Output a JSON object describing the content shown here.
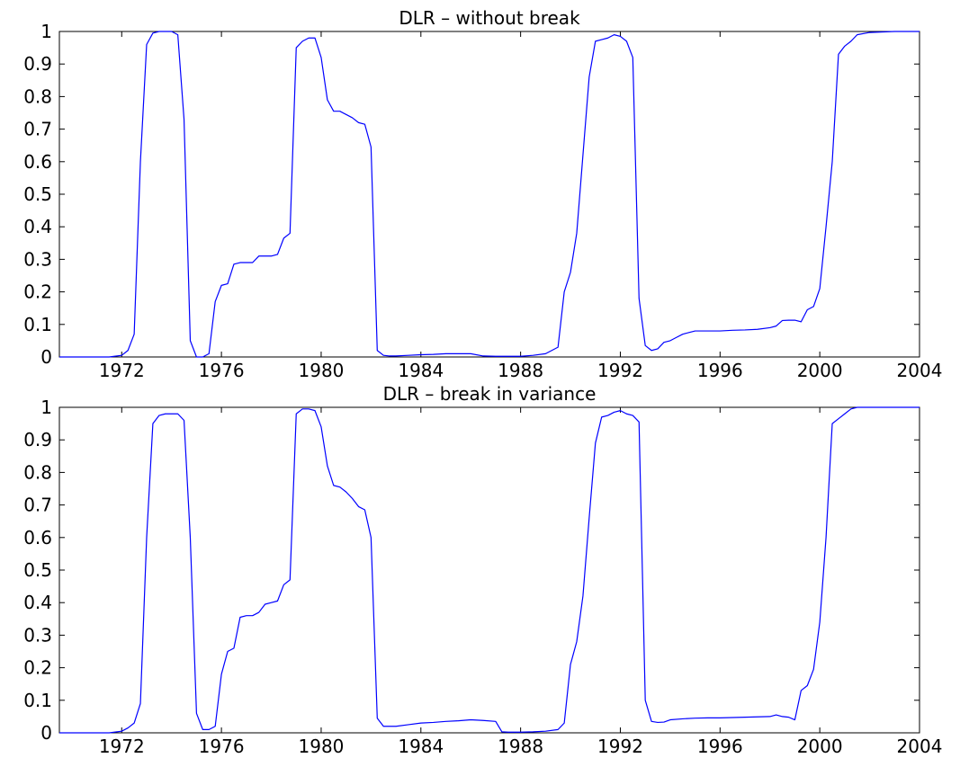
{
  "chart_data": [
    {
      "type": "line",
      "title": "DLR – without break",
      "xlabel": "",
      "ylabel": "",
      "xlim": [
        1969.5,
        2004
      ],
      "ylim": [
        0,
        1
      ],
      "grid": false,
      "xticks": [
        1972,
        1976,
        1980,
        1984,
        1988,
        1992,
        1996,
        2000,
        2004
      ],
      "xtick_labels": [
        "1972",
        "1976",
        "1980",
        "1984",
        "1988",
        "1992",
        "1996",
        "2000",
        "2004"
      ],
      "yticks": [
        0,
        0.1,
        0.2,
        0.3,
        0.4,
        0.5,
        0.6,
        0.7,
        0.8,
        0.9,
        1
      ],
      "ytick_labels": [
        "0",
        "0.1",
        "0.2",
        "0.3",
        "0.4",
        "0.5",
        "0.6",
        "0.7",
        "0.8",
        "0.9",
        "1"
      ],
      "series": [
        {
          "color": "#0000ff",
          "x": [
            1969.5,
            1970,
            1970.5,
            1971,
            1971.5,
            1972,
            1972.25,
            1972.5,
            1972.75,
            1973,
            1973.25,
            1973.5,
            1973.75,
            1974,
            1974.25,
            1974.5,
            1974.75,
            1975,
            1975.25,
            1975.5,
            1975.75,
            1976,
            1976.25,
            1976.5,
            1976.75,
            1977,
            1977.25,
            1977.5,
            1977.75,
            1978,
            1978.25,
            1978.5,
            1978.75,
            1979,
            1979.25,
            1979.5,
            1979.75,
            1980,
            1980.25,
            1980.5,
            1980.75,
            1981,
            1981.25,
            1981.5,
            1981.75,
            1982,
            1982.25,
            1982.5,
            1982.75,
            1983,
            1983.5,
            1984,
            1984.5,
            1985,
            1985.5,
            1986,
            1986.5,
            1987,
            1987.5,
            1988,
            1988.5,
            1989,
            1989.5,
            1989.75,
            1990,
            1990.25,
            1990.5,
            1990.75,
            1991,
            1991.25,
            1991.5,
            1991.75,
            1992,
            1992.25,
            1992.5,
            1992.75,
            1993,
            1993.25,
            1993.5,
            1993.75,
            1994,
            1994.25,
            1994.5,
            1994.75,
            1995,
            1995.5,
            1996,
            1996.5,
            1997,
            1997.5,
            1998,
            1998.25,
            1998.5,
            1998.75,
            1999,
            1999.25,
            1999.5,
            1999.75,
            2000,
            2000.25,
            2000.5,
            2000.75,
            2001,
            2001.25,
            2001.5,
            2002,
            2003,
            2004
          ],
          "y": [
            0,
            0,
            0,
            0,
            0,
            0.005,
            0.02,
            0.07,
            0.6,
            0.96,
            0.995,
            1,
            1,
            1,
            0.99,
            0.73,
            0.05,
            0,
            0,
            0.01,
            0.17,
            0.22,
            0.225,
            0.285,
            0.29,
            0.29,
            0.29,
            0.31,
            0.31,
            0.31,
            0.315,
            0.365,
            0.38,
            0.95,
            0.97,
            0.98,
            0.98,
            0.92,
            0.79,
            0.755,
            0.755,
            0.745,
            0.735,
            0.72,
            0.715,
            0.645,
            0.02,
            0.005,
            0.003,
            0.003,
            0.005,
            0.007,
            0.008,
            0.01,
            0.01,
            0.01,
            0.003,
            0.002,
            0.002,
            0.002,
            0.005,
            0.01,
            0.03,
            0.2,
            0.26,
            0.38,
            0.62,
            0.86,
            0.97,
            0.975,
            0.98,
            0.99,
            0.985,
            0.97,
            0.92,
            0.18,
            0.035,
            0.02,
            0.025,
            0.045,
            0.05,
            0.06,
            0.07,
            0.075,
            0.08,
            0.08,
            0.08,
            0.082,
            0.083,
            0.085,
            0.09,
            0.095,
            0.112,
            0.113,
            0.113,
            0.108,
            0.145,
            0.155,
            0.21,
            0.4,
            0.6,
            0.93,
            0.955,
            0.97,
            0.99,
            0.997,
            1,
            1
          ]
        }
      ]
    },
    {
      "type": "line",
      "title": "DLR – break in variance",
      "xlabel": "",
      "ylabel": "",
      "xlim": [
        1969.5,
        2004
      ],
      "ylim": [
        0,
        1
      ],
      "grid": false,
      "xticks": [
        1972,
        1976,
        1980,
        1984,
        1988,
        1992,
        1996,
        2000,
        2004
      ],
      "xtick_labels": [
        "1972",
        "1976",
        "1980",
        "1984",
        "1988",
        "1992",
        "1996",
        "2000",
        "2004"
      ],
      "yticks": [
        0,
        0.1,
        0.2,
        0.3,
        0.4,
        0.5,
        0.6,
        0.7,
        0.8,
        0.9,
        1
      ],
      "ytick_labels": [
        "0",
        "0.1",
        "0.2",
        "0.3",
        "0.4",
        "0.5",
        "0.6",
        "0.7",
        "0.8",
        "0.9",
        "1"
      ],
      "series": [
        {
          "color": "#0000ff",
          "x": [
            1969.5,
            1970,
            1970.5,
            1971,
            1971.5,
            1972,
            1972.25,
            1972.5,
            1972.75,
            1973,
            1973.25,
            1973.5,
            1973.75,
            1974,
            1974.25,
            1974.5,
            1974.75,
            1975,
            1975.25,
            1975.5,
            1975.75,
            1976,
            1976.25,
            1976.5,
            1976.75,
            1977,
            1977.25,
            1977.5,
            1977.75,
            1978,
            1978.25,
            1978.5,
            1978.75,
            1979,
            1979.25,
            1979.5,
            1979.75,
            1980,
            1980.25,
            1980.5,
            1980.75,
            1981,
            1981.25,
            1981.5,
            1981.75,
            1982,
            1982.25,
            1982.5,
            1982.75,
            1983,
            1983.5,
            1984,
            1984.5,
            1985,
            1985.5,
            1986,
            1986.5,
            1987,
            1987.25,
            1987.5,
            1988,
            1988.5,
            1989,
            1989.5,
            1989.75,
            1990,
            1990.25,
            1990.5,
            1990.75,
            1991,
            1991.25,
            1991.5,
            1991.75,
            1992,
            1992.25,
            1992.5,
            1992.75,
            1993,
            1993.25,
            1993.5,
            1993.75,
            1994,
            1994.5,
            1995,
            1995.5,
            1996,
            1996.5,
            1997,
            1997.5,
            1998,
            1998.25,
            1998.5,
            1998.75,
            1999,
            1999.25,
            1999.5,
            1999.75,
            2000,
            2000.25,
            2000.5,
            2000.75,
            2001,
            2001.25,
            2001.5,
            2002,
            2003,
            2004
          ],
          "y": [
            0,
            0,
            0,
            0,
            0,
            0.005,
            0.015,
            0.03,
            0.09,
            0.6,
            0.95,
            0.975,
            0.98,
            0.98,
            0.98,
            0.96,
            0.6,
            0.06,
            0.01,
            0.01,
            0.02,
            0.18,
            0.25,
            0.26,
            0.355,
            0.36,
            0.36,
            0.37,
            0.395,
            0.4,
            0.405,
            0.455,
            0.47,
            0.98,
            0.995,
            0.995,
            0.99,
            0.94,
            0.82,
            0.76,
            0.755,
            0.74,
            0.72,
            0.695,
            0.685,
            0.6,
            0.045,
            0.02,
            0.02,
            0.02,
            0.025,
            0.03,
            0.032,
            0.035,
            0.037,
            0.04,
            0.038,
            0.035,
            0.003,
            0.002,
            0.002,
            0.003,
            0.005,
            0.01,
            0.03,
            0.21,
            0.28,
            0.42,
            0.66,
            0.89,
            0.97,
            0.975,
            0.985,
            0.99,
            0.98,
            0.975,
            0.955,
            0.1,
            0.035,
            0.032,
            0.033,
            0.04,
            0.043,
            0.045,
            0.046,
            0.046,
            0.047,
            0.048,
            0.049,
            0.05,
            0.055,
            0.05,
            0.048,
            0.04,
            0.13,
            0.145,
            0.195,
            0.34,
            0.6,
            0.95,
            0.965,
            0.98,
            0.995,
            1,
            1,
            1,
            1
          ]
        }
      ]
    }
  ]
}
